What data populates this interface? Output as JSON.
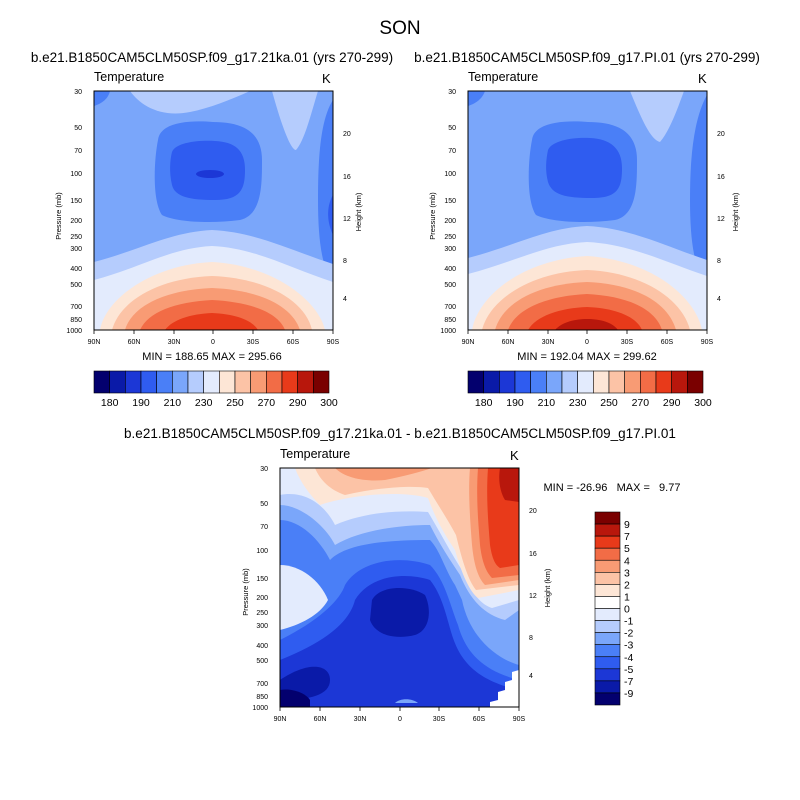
{
  "chart_data": [
    {
      "type": "heatmap",
      "figure_title": "SON",
      "title": "b.e21.B1850CAM5CLM50SP.f09_g17.21ka.01 (yrs 270-299)",
      "variable": "Temperature",
      "units": "K",
      "ylabel": "Pressure (mb)",
      "ylabel_right": "Height (km)",
      "x_ticks": [
        "90N",
        "60N",
        "30N",
        "0",
        "30S",
        "60S",
        "90S"
      ],
      "x_values": [
        90,
        60,
        30,
        0,
        -30,
        -60,
        -90
      ],
      "y_ticks": [
        "30",
        "50",
        "70",
        "100",
        "150",
        "200",
        "250",
        "300",
        "400",
        "500",
        "700",
        "850",
        "1000"
      ],
      "y_values": [
        30,
        50,
        70,
        100,
        150,
        200,
        250,
        300,
        400,
        500,
        700,
        850,
        1000
      ],
      "height_ticks": [
        "4",
        "8",
        "12",
        "16",
        "20"
      ],
      "height_values": [
        4,
        8,
        12,
        16,
        20
      ],
      "ylim": [
        1000,
        30
      ],
      "xlim": [
        90,
        -90
      ],
      "stats_text": "MIN = 188.65   MAX = 295.66",
      "min": 188.65,
      "max": 295.66,
      "colorbar_labels": [
        "180",
        "190",
        "210",
        "230",
        "250",
        "270",
        "290",
        "300"
      ],
      "colorbar_levels": [
        180,
        190,
        200,
        210,
        220,
        230,
        240,
        250,
        260,
        270,
        280,
        290,
        300
      ],
      "colorbar_colors": [
        "#03006e",
        "#0a1aa8",
        "#1c37d6",
        "#2f5cf0",
        "#4a7ff7",
        "#7aa6fa",
        "#b5ccfd",
        "#e3ebfd",
        "#fde6d6",
        "#fcc3a6",
        "#f89b74",
        "#f26c46",
        "#e83a1a",
        "#b8170c",
        "#7a0000"
      ]
    },
    {
      "type": "heatmap",
      "title": "b.e21.B1850CAM5CLM50SP.f09_g17.PI.01 (yrs 270-299)",
      "variable": "Temperature",
      "units": "K",
      "ylabel": "Pressure (mb)",
      "ylabel_right": "Height (km)",
      "x_ticks": [
        "90N",
        "60N",
        "30N",
        "0",
        "30S",
        "60S",
        "90S"
      ],
      "x_values": [
        90,
        60,
        30,
        0,
        -30,
        -60,
        -90
      ],
      "y_ticks": [
        "30",
        "50",
        "70",
        "100",
        "150",
        "200",
        "250",
        "300",
        "400",
        "500",
        "700",
        "850",
        "1000"
      ],
      "y_values": [
        30,
        50,
        70,
        100,
        150,
        200,
        250,
        300,
        400,
        500,
        700,
        850,
        1000
      ],
      "height_ticks": [
        "4",
        "8",
        "12",
        "16",
        "20"
      ],
      "height_values": [
        4,
        8,
        12,
        16,
        20
      ],
      "ylim": [
        1000,
        30
      ],
      "xlim": [
        90,
        -90
      ],
      "stats_text": "MIN = 192.04   MAX = 299.62",
      "min": 192.04,
      "max": 299.62,
      "colorbar_labels": [
        "180",
        "190",
        "210",
        "230",
        "250",
        "270",
        "290",
        "300"
      ],
      "colorbar_levels": [
        180,
        190,
        200,
        210,
        220,
        230,
        240,
        250,
        260,
        270,
        280,
        290,
        300
      ],
      "colorbar_colors": [
        "#03006e",
        "#0a1aa8",
        "#1c37d6",
        "#2f5cf0",
        "#4a7ff7",
        "#7aa6fa",
        "#b5ccfd",
        "#e3ebfd",
        "#fde6d6",
        "#fcc3a6",
        "#f89b74",
        "#f26c46",
        "#e83a1a",
        "#b8170c",
        "#7a0000"
      ]
    },
    {
      "type": "heatmap",
      "title": "b.e21.B1850CAM5CLM50SP.f09_g17.21ka.01 - b.e21.B1850CAM5CLM50SP.f09_g17.PI.01",
      "variable": "Temperature",
      "units": "K",
      "ylabel": "Pressure (mb)",
      "ylabel_right": "Height (km)",
      "x_ticks": [
        "90N",
        "60N",
        "30N",
        "0",
        "30S",
        "60S",
        "90S"
      ],
      "x_values": [
        90,
        60,
        30,
        0,
        -30,
        -60,
        -90
      ],
      "y_ticks": [
        "30",
        "50",
        "70",
        "100",
        "150",
        "200",
        "250",
        "300",
        "400",
        "500",
        "700",
        "850",
        "1000"
      ],
      "y_values": [
        30,
        50,
        70,
        100,
        150,
        200,
        250,
        300,
        400,
        500,
        700,
        850,
        1000
      ],
      "height_ticks": [
        "4",
        "8",
        "12",
        "16",
        "20"
      ],
      "height_values": [
        4,
        8,
        12,
        16,
        20
      ],
      "ylim": [
        1000,
        30
      ],
      "xlim": [
        90,
        -90
      ],
      "stats_text": "MIN = -26.96   MAX =   9.77",
      "min": -26.96,
      "max": 9.77,
      "colorbar_labels": [
        "9",
        "7",
        "5",
        "4",
        "3",
        "2",
        "1",
        "0",
        "-1",
        "-2",
        "-3",
        "-4",
        "-5",
        "-7",
        "-9"
      ],
      "colorbar_levels": [
        9,
        7,
        5,
        4,
        3,
        2,
        1,
        0,
        -1,
        -2,
        -3,
        -4,
        -5,
        -7,
        -9
      ],
      "colorbar_colors": [
        "#7a0000",
        "#b8170c",
        "#e83a1a",
        "#f26c46",
        "#f89b74",
        "#fcc3a6",
        "#fde6d6",
        "#ffffff",
        "#e3ebfd",
        "#b5ccfd",
        "#7aa6fa",
        "#4a7ff7",
        "#2f5cf0",
        "#1c37d6",
        "#0a1aa8",
        "#03006e"
      ]
    }
  ]
}
